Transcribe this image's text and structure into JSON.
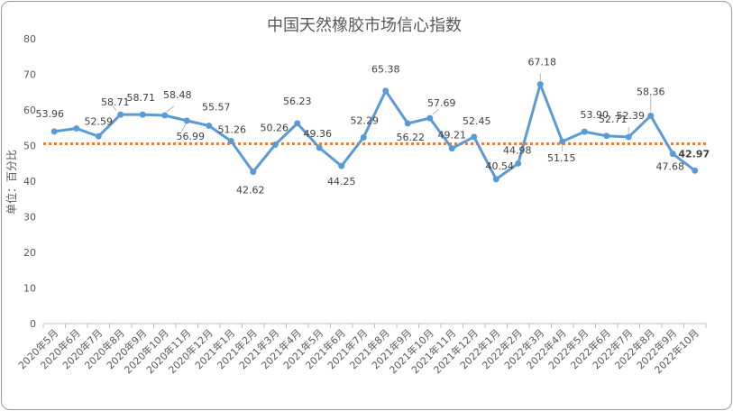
{
  "chart_data": {
    "type": "line",
    "title": "中国天然橡胶市场信心指数",
    "ylabel": "单位：百分比",
    "xlabel": "",
    "ylim": [
      0,
      80
    ],
    "yticks": [
      0,
      10,
      20,
      30,
      40,
      50,
      60,
      70,
      80
    ],
    "grid": false,
    "legend": "none",
    "reference_line": {
      "value": 50.5,
      "color": "#ed7d31",
      "style": "dotted"
    },
    "line_color": "#5b9bd5",
    "categories": [
      "2020年5月",
      "2020年6月",
      "2020年7月",
      "2020年8月",
      "2020年9月",
      "2020年10月",
      "2020年11月",
      "2020年12月",
      "2021年1月",
      "2021年2月",
      "2021年3月",
      "2021年4月",
      "2021年5月",
      "2021年6月",
      "2021年7月",
      "2021年8月",
      "2021年9月",
      "2021年10月",
      "2021年11月",
      "2021年12月",
      "2022年1月",
      "2022年2月",
      "2022年3月",
      "2022年4月",
      "2022年5月",
      "2022年6月",
      "2022年7月",
      "2022年8月",
      "2022年9月",
      "2022年10月"
    ],
    "values": [
      53.96,
      54.8,
      52.59,
      58.71,
      58.71,
      58.48,
      56.99,
      55.57,
      51.26,
      42.62,
      50.26,
      56.23,
      49.36,
      44.25,
      52.29,
      65.38,
      56.22,
      57.69,
      49.21,
      52.45,
      40.54,
      44.98,
      67.18,
      51.15,
      53.9,
      52.71,
      52.39,
      58.36,
      47.68,
      42.97
    ],
    "data_labels": [
      "53.96",
      "",
      "52.59",
      "58.71",
      "58.71",
      "58.48",
      "56.99",
      "55.57",
      "51.26",
      "42.62",
      "50.26",
      "56.23",
      "49.36",
      "44.25",
      "52.29",
      "65.38",
      "56.22",
      "57.69",
      "49.21",
      "52.45",
      "40.54",
      "44.98",
      "67.18",
      "51.15",
      "53.90",
      "52.71",
      "52.39",
      "58.36",
      "47.68",
      "42.97"
    ]
  }
}
